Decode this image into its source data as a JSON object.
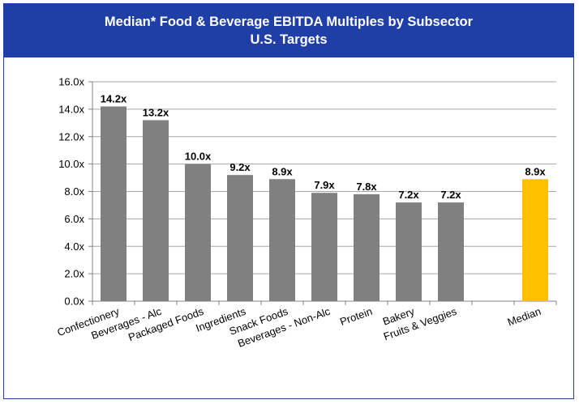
{
  "title": {
    "line1": "Median* Food & Beverage EBITDA Multiples by Subsector",
    "line2": "U.S. Targets"
  },
  "colors": {
    "frame": "#1f3fa6",
    "bar": "#808080",
    "highlight": "#ffc000",
    "grid": "#a6a6a6"
  },
  "chart_data": {
    "type": "bar",
    "title": "Median* Food & Beverage EBITDA Multiples by Subsector U.S. Targets",
    "xlabel": "",
    "ylabel": "",
    "ylim": [
      0,
      16
    ],
    "yticks": [
      "0.0x",
      "2.0x",
      "4.0x",
      "6.0x",
      "8.0x",
      "10.0x",
      "12.0x",
      "14.0x",
      "16.0x"
    ],
    "grid": true,
    "categories": [
      "Confectionery",
      "Beverages - Alc",
      "Packaged Foods",
      "Ingredients",
      "Snack Foods",
      "Beverages - Non-Alc",
      "Protein",
      "Bakery",
      "Fruits & Veggies",
      "",
      "Median"
    ],
    "values": [
      14.2,
      13.2,
      10.0,
      9.2,
      8.9,
      7.9,
      7.8,
      7.2,
      7.2,
      null,
      8.9
    ],
    "data_labels": [
      "14.2x",
      "13.2x",
      "10.0x",
      "9.2x",
      "8.9x",
      "7.9x",
      "7.8x",
      "7.2x",
      "7.2x",
      "",
      "8.9x"
    ],
    "highlight": [
      false,
      false,
      false,
      false,
      false,
      false,
      false,
      false,
      false,
      false,
      true
    ]
  }
}
